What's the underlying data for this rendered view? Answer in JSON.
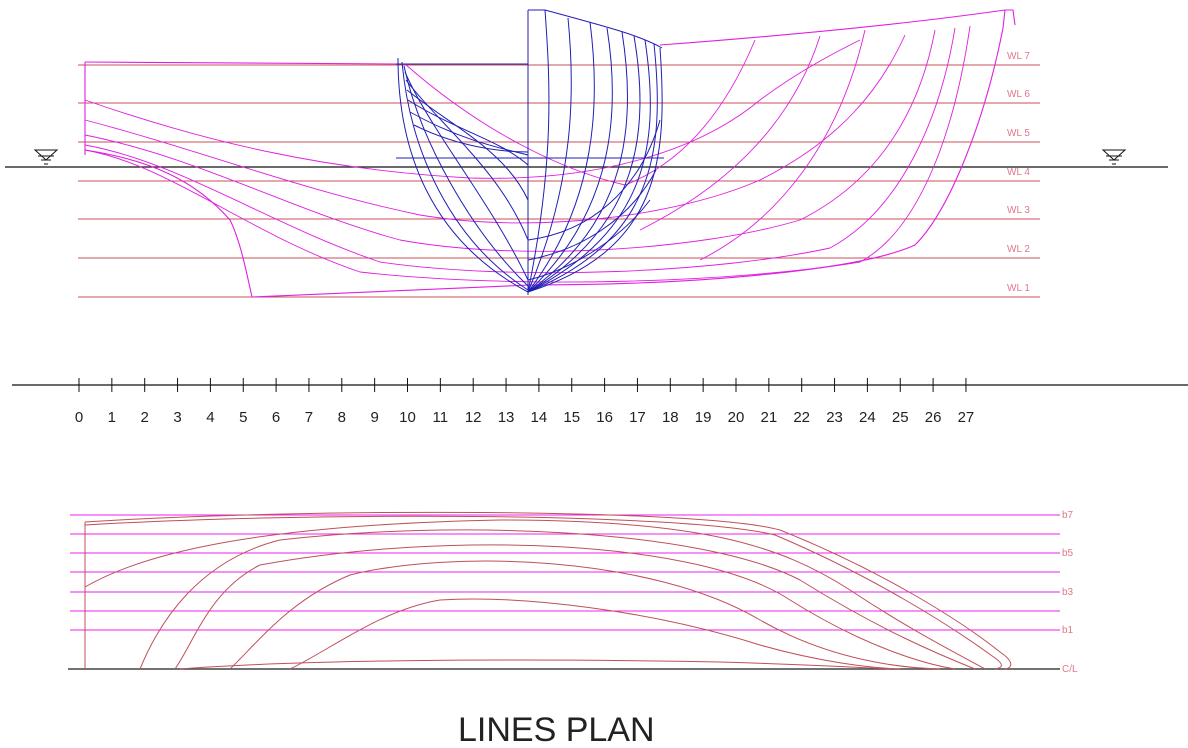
{
  "title": "LINES PLAN",
  "colors": {
    "waterline": "#c8505a",
    "section": "#1f1fb4",
    "profile": "#e020e0",
    "plan_lines": "#c05058",
    "buttock": "#ee22ee",
    "axis": "#111111"
  },
  "waterlines": [
    "WL 1",
    "WL 2",
    "WL 3",
    "WL 4",
    "WL 5",
    "WL 6",
    "WL 7"
  ],
  "stations": [
    "0",
    "1",
    "2",
    "3",
    "4",
    "5",
    "6",
    "7",
    "8",
    "9",
    "10",
    "11",
    "12",
    "13",
    "14",
    "15",
    "16",
    "17",
    "18",
    "19",
    "20",
    "21",
    "22",
    "23",
    "24",
    "25",
    "26",
    "27"
  ],
  "buttock_labels": [
    "b7",
    "b5",
    "b3",
    "b1",
    "C/L"
  ],
  "water_symbols": [
    "waterline-symbol-left",
    "waterline-symbol-right"
  ]
}
